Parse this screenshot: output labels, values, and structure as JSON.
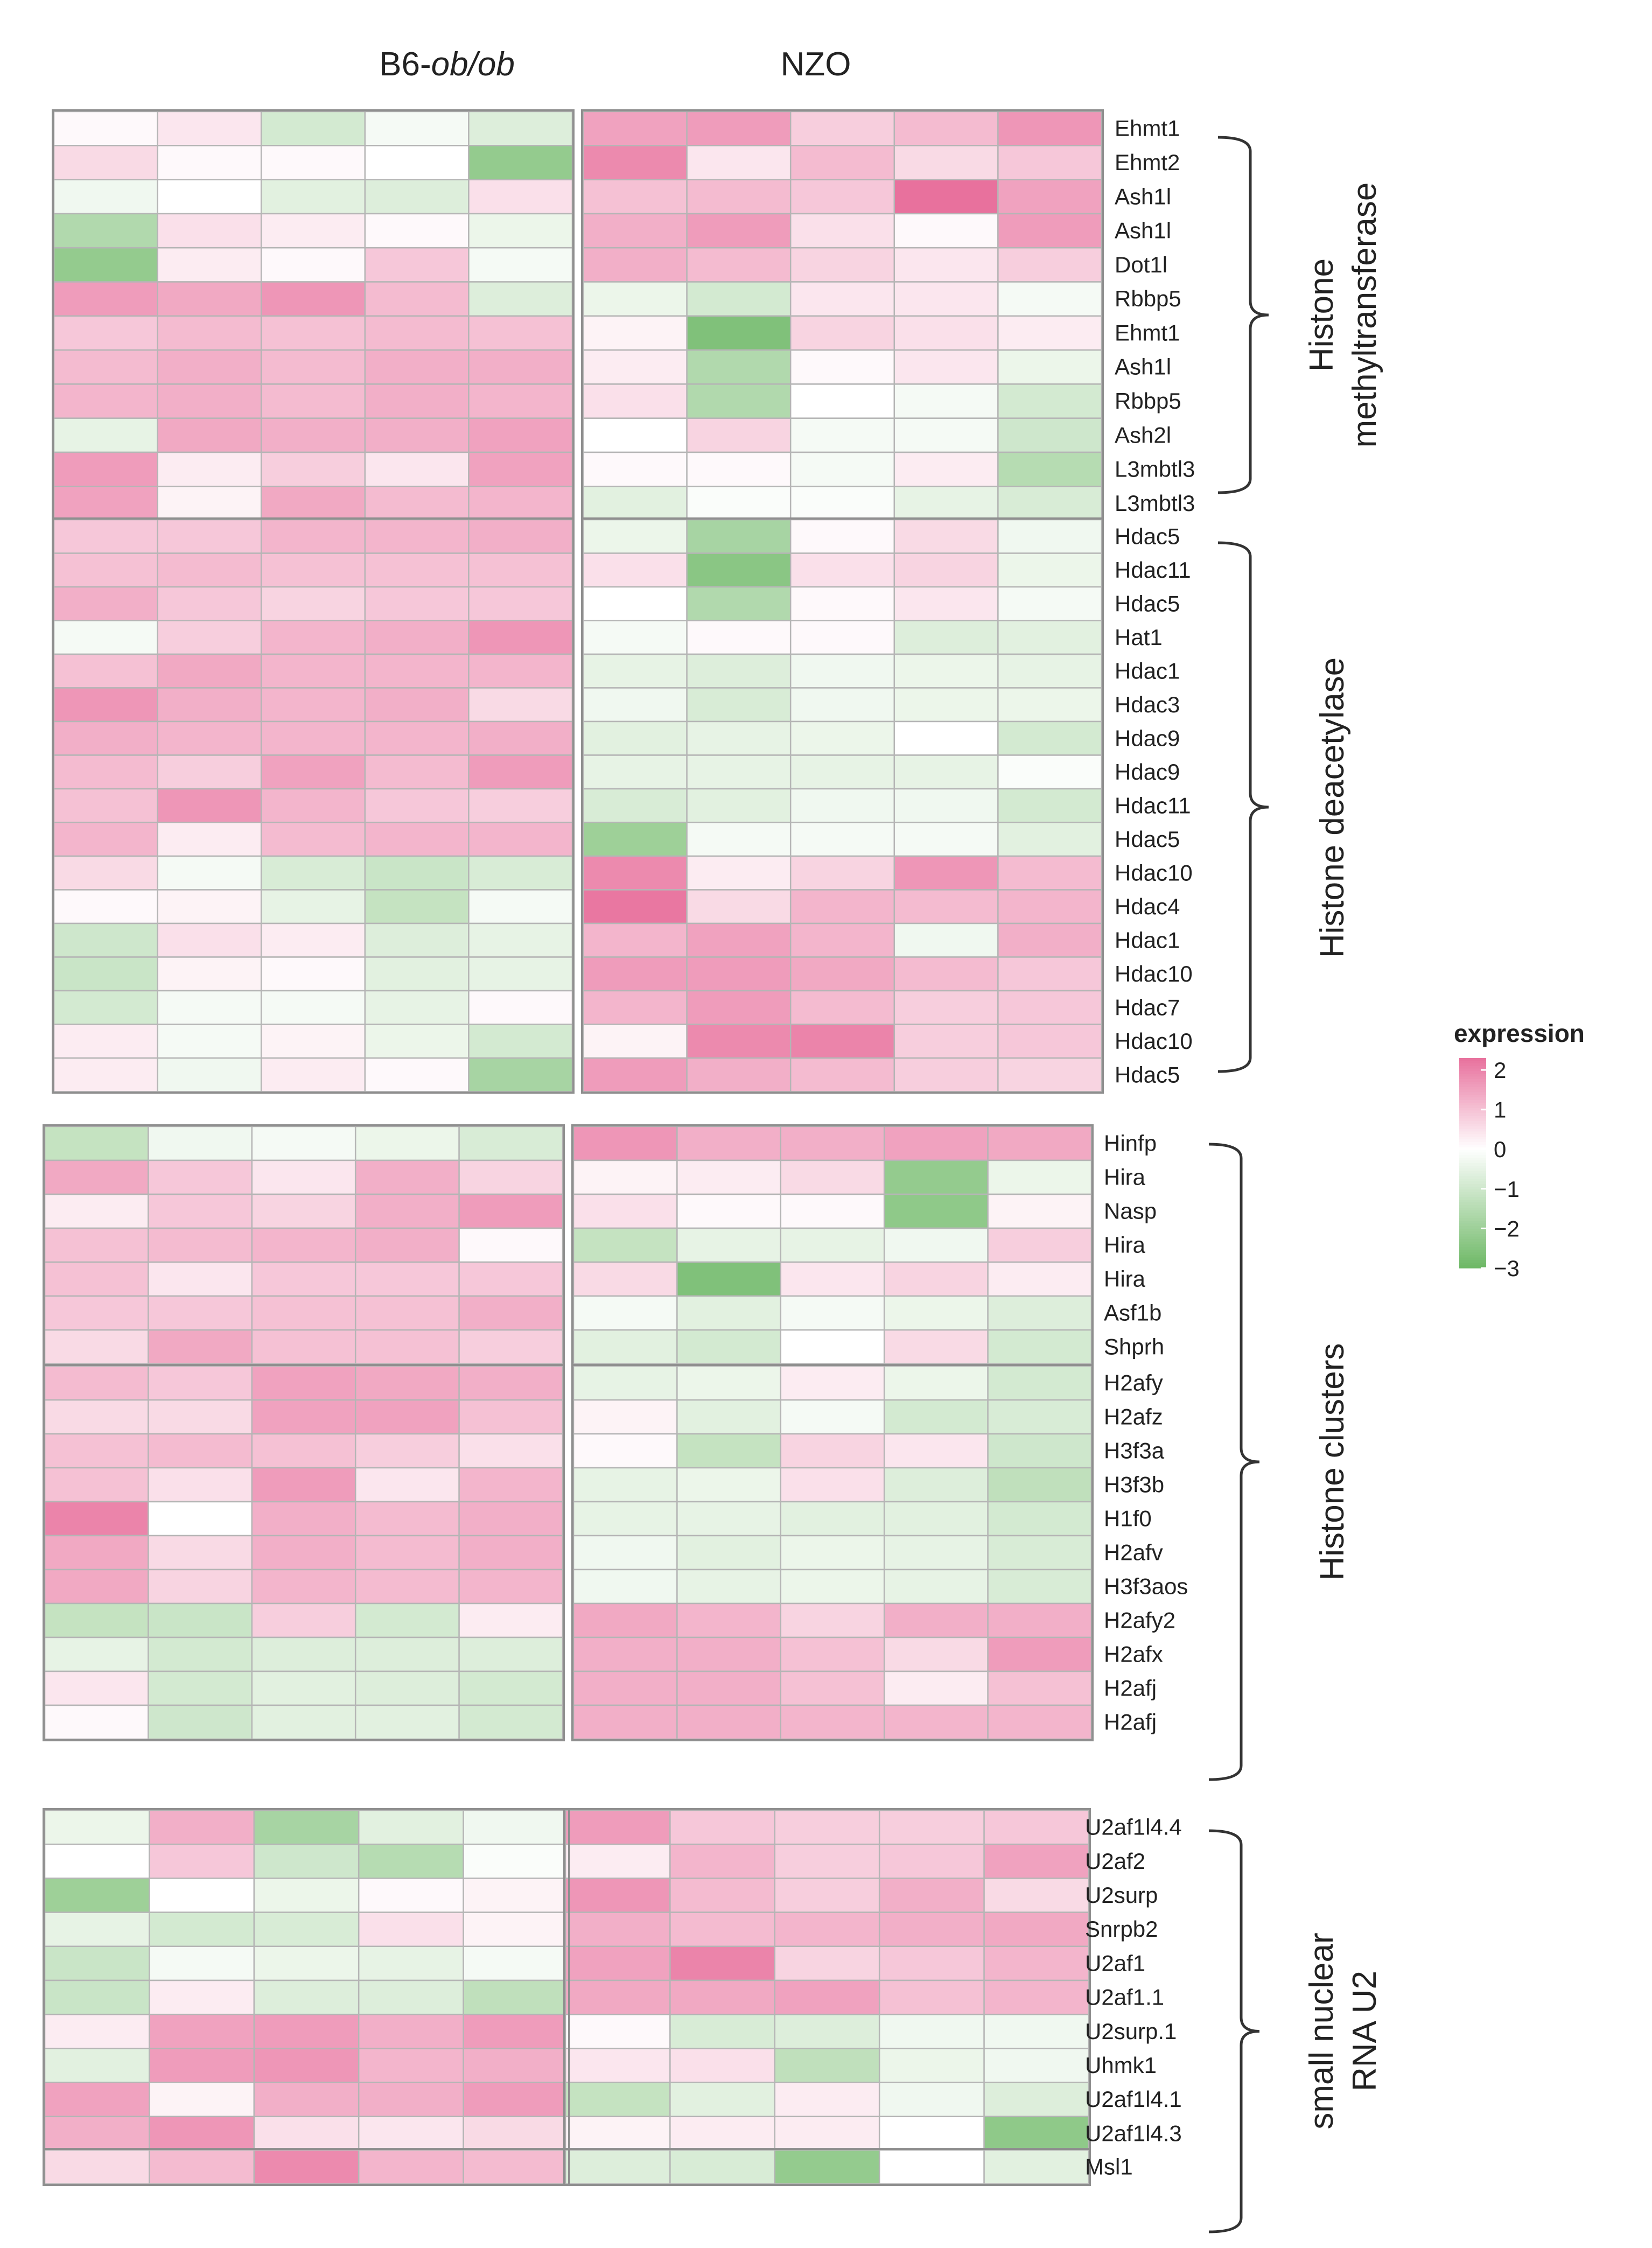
{
  "chart_data": {
    "type": "heatmap",
    "legend": {
      "title": "expression",
      "ticks": [
        "2",
        "1",
        "0",
        "−1",
        "−2",
        "−3"
      ],
      "tick_values": [
        2,
        1,
        0,
        -1,
        -2,
        -3
      ],
      "range": [
        -3,
        2.3
      ],
      "placement": "right",
      "colors": {
        "high": "#e8719d",
        "mid": "#ffffff",
        "low": "#6db865"
      }
    },
    "column_groups": [
      {
        "prefix": "B6-",
        "italic": "ob/ob",
        "columns": 5
      },
      {
        "prefix": "NZO",
        "italic": "",
        "columns": 5
      }
    ],
    "gene_groups": [
      {
        "label_lines": [
          "Histone",
          "methyltransferase"
        ]
      },
      {
        "label_lines": [
          "Histone deacetylase"
        ]
      },
      {
        "label_lines": [
          "Histone clusters"
        ]
      },
      {
        "label_lines": [
          "small nuclear",
          "RNA U2"
        ]
      }
    ],
    "blocks": [
      {
        "genes": [
          "Ehmt1",
          "Ehmt2",
          "Ash1l",
          "Ash1l",
          "Dot1l",
          "Rbbp5",
          "Ehmt1",
          "Ash1l",
          "Rbbp5",
          "Ash2l",
          "L3mbtl3",
          "L3mbtl3"
        ],
        "values": [
          [
            0.1,
            0.4,
            -0.9,
            -0.2,
            -0.7,
            1.5,
            1.6,
            0.8,
            1.1,
            1.7
          ],
          [
            0.6,
            0.1,
            0.1,
            0.0,
            -2.2,
            1.9,
            0.4,
            1.1,
            0.6,
            0.9
          ],
          [
            -0.3,
            0.0,
            -0.6,
            -0.7,
            0.5,
            1.0,
            1.1,
            0.9,
            2.3,
            1.5
          ],
          [
            -1.6,
            0.5,
            0.3,
            0.1,
            -0.4,
            1.3,
            1.6,
            0.5,
            0.1,
            1.6
          ],
          [
            -2.2,
            0.3,
            0.1,
            0.9,
            -0.2,
            1.3,
            1.1,
            0.7,
            0.4,
            0.8
          ],
          [
            1.6,
            1.4,
            1.7,
            1.1,
            -0.7,
            -0.4,
            -0.9,
            0.4,
            0.4,
            -0.2
          ],
          [
            0.9,
            1.1,
            1.0,
            1.1,
            1.0,
            0.2,
            -2.6,
            0.7,
            0.5,
            0.3
          ],
          [
            1.1,
            1.3,
            1.1,
            1.3,
            1.3,
            0.3,
            -1.6,
            0.1,
            0.4,
            -0.4
          ],
          [
            1.2,
            1.3,
            1.1,
            1.3,
            1.2,
            0.5,
            -1.6,
            0.0,
            -0.2,
            -0.9
          ],
          [
            -0.5,
            1.4,
            1.3,
            1.3,
            1.5,
            0.0,
            0.7,
            -0.2,
            -0.2,
            -1.0
          ],
          [
            1.6,
            0.3,
            0.8,
            0.4,
            1.5,
            0.1,
            0.1,
            -0.2,
            0.3,
            -1.5
          ],
          [
            1.5,
            0.2,
            1.4,
            1.1,
            1.2,
            -0.6,
            -0.1,
            -0.1,
            -0.5,
            -0.8
          ]
        ]
      },
      {
        "genes": [
          "Hdac5",
          "Hdac11",
          "Hdac5",
          "Hat1",
          "Hdac1",
          "Hdac3",
          "Hdac9",
          "Hdac9",
          "Hdac11",
          "Hdac5",
          "Hdac10",
          "Hdac4",
          "Hdac1",
          "Hdac10",
          "Hdac7",
          "Hdac10",
          "Hdac5"
        ],
        "values": [
          [
            0.9,
            0.9,
            1.2,
            1.2,
            1.3,
            -0.4,
            -1.8,
            0.1,
            0.6,
            -0.3
          ],
          [
            1.0,
            1.1,
            1.0,
            1.0,
            1.0,
            0.5,
            -2.4,
            0.5,
            0.7,
            -0.4
          ],
          [
            1.3,
            0.9,
            0.7,
            0.9,
            0.9,
            0.0,
            -1.6,
            0.1,
            0.4,
            -0.2
          ],
          [
            -0.2,
            0.8,
            1.2,
            1.3,
            1.7,
            -0.2,
            0.1,
            0.1,
            -0.7,
            -0.6
          ],
          [
            1.0,
            1.4,
            1.2,
            1.2,
            1.2,
            -0.5,
            -0.7,
            -0.3,
            -0.4,
            -0.5
          ],
          [
            1.7,
            1.3,
            1.2,
            1.3,
            0.6,
            -0.3,
            -0.8,
            -0.3,
            -0.4,
            -0.4
          ],
          [
            1.3,
            1.2,
            1.2,
            1.2,
            1.3,
            -0.6,
            -0.5,
            -0.4,
            0.0,
            -0.9
          ],
          [
            1.1,
            0.8,
            1.5,
            1.1,
            1.6,
            -0.5,
            -0.5,
            -0.5,
            -0.5,
            -0.1
          ],
          [
            1.0,
            1.7,
            1.2,
            0.9,
            0.8,
            -0.8,
            -0.6,
            -0.3,
            -0.3,
            -0.9
          ],
          [
            1.2,
            0.3,
            1.1,
            1.2,
            1.2,
            -2.0,
            -0.2,
            -0.2,
            -0.2,
            -0.6
          ],
          [
            0.6,
            -0.2,
            -0.8,
            -1.1,
            -0.8,
            1.9,
            0.3,
            0.7,
            1.7,
            1.1
          ],
          [
            0.1,
            0.2,
            -0.5,
            -1.2,
            -0.2,
            2.2,
            0.6,
            1.2,
            1.1,
            1.2
          ],
          [
            -1.0,
            0.5,
            0.3,
            -0.7,
            -0.5,
            1.2,
            1.5,
            1.2,
            -0.3,
            1.3
          ],
          [
            -1.1,
            0.2,
            0.1,
            -0.6,
            -0.5,
            1.6,
            1.6,
            1.4,
            1.1,
            0.9
          ],
          [
            -0.9,
            -0.2,
            -0.2,
            -0.5,
            0.1,
            1.2,
            1.6,
            1.1,
            0.8,
            0.9
          ],
          [
            0.3,
            -0.2,
            0.2,
            -0.4,
            -0.9,
            0.2,
            1.9,
            2.0,
            0.8,
            0.9
          ],
          [
            0.3,
            -0.3,
            0.3,
            0.1,
            -1.8,
            1.6,
            1.3,
            1.1,
            0.8,
            0.7
          ]
        ]
      },
      {
        "genes": [
          "Hinfp",
          "Hira",
          "Nasp",
          "Hira",
          "Hira",
          "Asf1b",
          "Shprh"
        ],
        "values": [
          [
            -1.2,
            -0.3,
            -0.2,
            -0.4,
            -0.8,
            1.7,
            1.3,
            1.3,
            1.5,
            1.4
          ],
          [
            1.4,
            0.9,
            0.4,
            1.3,
            0.7,
            0.2,
            0.3,
            0.6,
            -2.2,
            -0.4
          ],
          [
            0.3,
            0.9,
            0.7,
            1.3,
            1.6,
            0.5,
            0.1,
            0.1,
            -2.3,
            0.2
          ],
          [
            1.0,
            1.1,
            1.2,
            1.3,
            0.1,
            -1.2,
            -0.5,
            -0.5,
            -0.3,
            0.8
          ],
          [
            1.0,
            0.4,
            0.9,
            0.9,
            0.9,
            0.6,
            -2.6,
            0.4,
            0.7,
            0.3
          ],
          [
            0.9,
            0.9,
            1.0,
            1.0,
            1.3,
            -0.2,
            -0.6,
            -0.2,
            -0.4,
            -0.7
          ],
          [
            0.6,
            1.4,
            1.0,
            1.0,
            0.8,
            -0.6,
            -0.9,
            0.0,
            0.6,
            -0.9
          ]
        ]
      },
      {
        "genes": [
          "H2afy",
          "H2afz",
          "H3f3a",
          "H3f3b",
          "H1f0",
          "H2afv",
          "H3f3aos",
          "H2afy2",
          "H2afx",
          "H2afj",
          "H2afj"
        ],
        "values": [
          [
            1.1,
            0.9,
            1.5,
            1.4,
            1.3,
            -0.5,
            -0.4,
            0.3,
            -0.4,
            -0.9
          ],
          [
            0.6,
            0.6,
            1.5,
            1.5,
            1.0,
            0.2,
            -0.6,
            -0.2,
            -0.9,
            -0.8
          ],
          [
            1.0,
            1.1,
            1.0,
            0.8,
            0.5,
            0.1,
            -1.2,
            0.7,
            0.4,
            -1.0
          ],
          [
            1.0,
            0.5,
            1.6,
            0.4,
            1.2,
            -0.5,
            -0.4,
            0.5,
            -0.7,
            -1.3
          ],
          [
            2.0,
            0.0,
            1.3,
            1.1,
            1.3,
            -0.5,
            -0.5,
            -0.6,
            -0.6,
            -0.9
          ],
          [
            1.4,
            0.6,
            1.3,
            1.1,
            1.3,
            -0.3,
            -0.6,
            -0.4,
            -0.5,
            -0.8
          ],
          [
            1.4,
            0.7,
            1.2,
            1.1,
            1.2,
            -0.3,
            -0.5,
            -0.4,
            -0.5,
            -0.8
          ],
          [
            -1.2,
            -1.1,
            0.8,
            -0.9,
            0.3,
            1.4,
            1.2,
            0.7,
            1.3,
            1.3
          ],
          [
            -0.5,
            -0.9,
            -0.7,
            -0.7,
            -0.7,
            1.3,
            1.3,
            1.0,
            0.6,
            1.6
          ],
          [
            0.4,
            -0.9,
            -0.6,
            -0.7,
            -0.9,
            1.3,
            1.3,
            1.0,
            0.3,
            1.0
          ],
          [
            0.1,
            -1.0,
            -0.6,
            -0.6,
            -0.9,
            1.3,
            1.3,
            1.2,
            1.2,
            1.2
          ]
        ]
      },
      {
        "genes": [
          "U2af1l4.4",
          "U2af2",
          "U2surp",
          "Snrpb2",
          "U2af1",
          "U2af1.1",
          "U2surp.1",
          "Uhmk1",
          "U2af1l4.1",
          "U2af1l4.3"
        ],
        "values": [
          [
            -0.4,
            1.3,
            -1.8,
            -0.6,
            -0.3,
            1.6,
            0.9,
            0.8,
            0.8,
            0.9
          ],
          [
            0.0,
            0.9,
            -1.0,
            -1.5,
            -0.1,
            0.3,
            1.2,
            0.8,
            0.9,
            1.5
          ],
          [
            -2.0,
            0.0,
            -0.4,
            0.1,
            0.2,
            1.7,
            1.1,
            0.8,
            1.3,
            0.6
          ],
          [
            -0.5,
            -0.9,
            -0.8,
            0.5,
            0.2,
            1.3,
            1.1,
            1.2,
            1.3,
            1.4
          ],
          [
            -1.1,
            -0.2,
            -0.4,
            -0.5,
            -0.2,
            1.5,
            2.0,
            0.7,
            0.9,
            1.2
          ],
          [
            -1.1,
            0.3,
            -0.7,
            -0.7,
            -1.3,
            1.4,
            1.4,
            1.5,
            1.0,
            1.2
          ],
          [
            0.3,
            1.5,
            1.6,
            1.3,
            1.6,
            0.1,
            -0.8,
            -0.7,
            -0.3,
            -0.3
          ],
          [
            -0.6,
            1.6,
            1.7,
            1.2,
            1.3,
            0.4,
            0.5,
            -1.3,
            -0.4,
            -0.3
          ],
          [
            1.5,
            0.2,
            1.3,
            1.3,
            1.6,
            -1.2,
            -0.6,
            0.3,
            -0.3,
            -0.7
          ],
          [
            1.3,
            1.7,
            0.5,
            0.4,
            0.6,
            0.2,
            0.3,
            0.3,
            0.0,
            -2.3
          ]
        ]
      },
      {
        "genes": [
          "Msl1"
        ],
        "values": [
          [
            0.6,
            1.1,
            1.9,
            1.2,
            1.1,
            -0.7,
            -0.8,
            -2.2,
            0.0,
            -0.6
          ]
        ]
      }
    ]
  }
}
